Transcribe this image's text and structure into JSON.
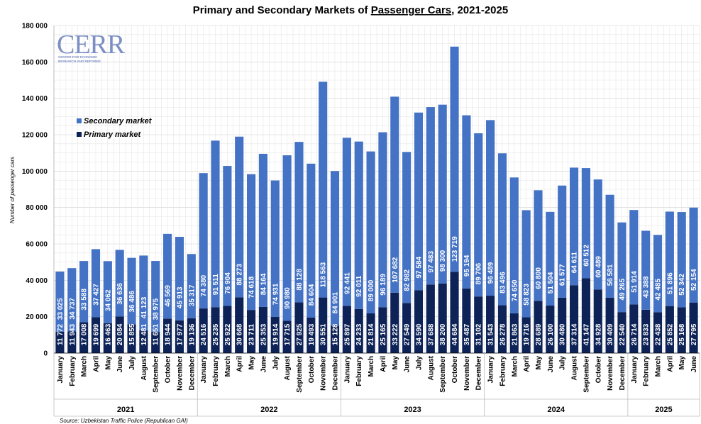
{
  "chart_data": {
    "type": "bar",
    "stacked": true,
    "title_prefix": "Primary and Secondary Markets of ",
    "title_underlined": "Passenger Cars",
    "title_suffix": ", 2021-2025",
    "ylabel": "Number of passenger cars",
    "ylim": [
      0,
      180000
    ],
    "yticks": [
      "0",
      "20 000",
      "40 000",
      "60 000",
      "80 000",
      "100 000",
      "120 000",
      "140 000",
      "160 000",
      "180 000"
    ],
    "ytick_values": [
      0,
      20000,
      40000,
      60000,
      80000,
      100000,
      120000,
      140000,
      160000,
      180000
    ],
    "grid": true,
    "legend_position": "left",
    "colors": {
      "primary": "#0d2257",
      "secondary": "#4472c4",
      "grid": "#d9d9d9"
    },
    "years": [
      {
        "label": "2021",
        "count": 12
      },
      {
        "label": "2022",
        "count": 12
      },
      {
        "label": "2023",
        "count": 12
      },
      {
        "label": "2024",
        "count": 12
      },
      {
        "label": "2025",
        "count": 6
      }
    ],
    "categories": [
      "January",
      "February",
      "March",
      "April",
      "May",
      "June",
      "July",
      "August",
      "September",
      "October",
      "November",
      "December",
      "January",
      "February",
      "March",
      "April",
      "May",
      "June",
      "July",
      "August",
      "September",
      "October",
      "November",
      "December",
      "January",
      "February",
      "March",
      "April",
      "May",
      "June",
      "July",
      "August",
      "September",
      "October",
      "November",
      "December",
      "January",
      "February",
      "March",
      "April",
      "May",
      "June",
      "July",
      "August",
      "September",
      "October",
      "November",
      "December",
      "January",
      "February",
      "March",
      "April",
      "May",
      "June"
    ],
    "series": [
      {
        "name": "Primary market",
        "values": [
          11772,
          11943,
          17008,
          19699,
          16463,
          20084,
          15855,
          12481,
          11651,
          18944,
          17977,
          19136,
          24516,
          25235,
          25922,
          30668,
          23711,
          25353,
          19914,
          17715,
          27925,
          19493,
          30551,
          15128,
          25897,
          24233,
          21814,
          25165,
          33222,
          27549,
          34590,
          37688,
          38200,
          44684,
          35487,
          31102,
          31543,
          26278,
          21863,
          19716,
          28689,
          26100,
          30480,
          37314,
          41147,
          34928,
          30409,
          22540,
          26714,
          23833,
          22438,
          25852,
          25168,
          27795
        ],
        "labels": [
          "11 772",
          "11 943",
          "17 008",
          "19 699",
          "16 463",
          "20 084",
          "15 855",
          "12 481",
          "11 651",
          "18 944",
          "17 977",
          "19 136",
          "24 516",
          "25 235",
          "25 922",
          "30 668",
          "23 711",
          "25 353",
          "19 914",
          "17 715",
          "27 925",
          "19 493",
          "30 551",
          "15 128",
          "25 897",
          "24 233",
          "21 814",
          "25 165",
          "33 222",
          "27 549",
          "34 590",
          "37 688",
          "38 200",
          "44 684",
          "35 487",
          "31 102",
          "31 543",
          "26 278",
          "21 863",
          "19 716",
          "28 689",
          "26 100",
          "30 480",
          "37 314",
          "41 147",
          "34 928",
          "30 409",
          "22 540",
          "26 714",
          "23 833",
          "22 438",
          "25 852",
          "25 168",
          "27 795"
        ]
      },
      {
        "name": "Secondary market",
        "values": [
          33025,
          34737,
          33588,
          37427,
          34062,
          36636,
          36486,
          41123,
          38975,
          46569,
          45913,
          35317,
          74380,
          91511,
          76904,
          88273,
          74618,
          84164,
          74931,
          90980,
          88128,
          84604,
          118563,
          84901,
          92441,
          92011,
          89000,
          96189,
          107682,
          82982,
          97584,
          97483,
          98300,
          123719,
          95194,
          89706,
          96489,
          83496,
          74650,
          58823,
          60800,
          51504,
          61577,
          64611,
          60512,
          60489,
          56581,
          49265,
          51914,
          43388,
          42485,
          51896,
          52342,
          52154
        ],
        "labels": [
          "33 025",
          "34 737",
          "33 588",
          "37 427",
          "34 062",
          "36 636",
          "36 486",
          "41 123",
          "38 975",
          "46 569",
          "45 913",
          "35 317",
          "74 380",
          "91 511",
          "76 904",
          "88 273",
          "74 618",
          "84 164",
          "74 931",
          "90 980",
          "88 128",
          "84 604",
          "118 563",
          "84 901",
          "92 441",
          "92 011",
          "89 000",
          "96 189",
          "107 682",
          "82 982",
          "97 584",
          "97 483",
          "98 300",
          "123 719",
          "95 194",
          "89 706",
          "96 489",
          "83 496",
          "74 650",
          "58 823",
          "60 800",
          "51 504",
          "61 577",
          "64 611",
          "60 512",
          "60 489",
          "56 581",
          "49 265",
          "51 914",
          "43 388",
          "42 485",
          "51 896",
          "52 342",
          "52 154"
        ]
      }
    ],
    "source": "Source: Uzbekistan Traffic Police (Republican GAI)"
  },
  "logo": {
    "text": "CERR",
    "sub_line1": "CENTER FOR ECONOMIC",
    "sub_line2": "RESEARCH AND REFORMS",
    "color": "#7b8fc4"
  }
}
